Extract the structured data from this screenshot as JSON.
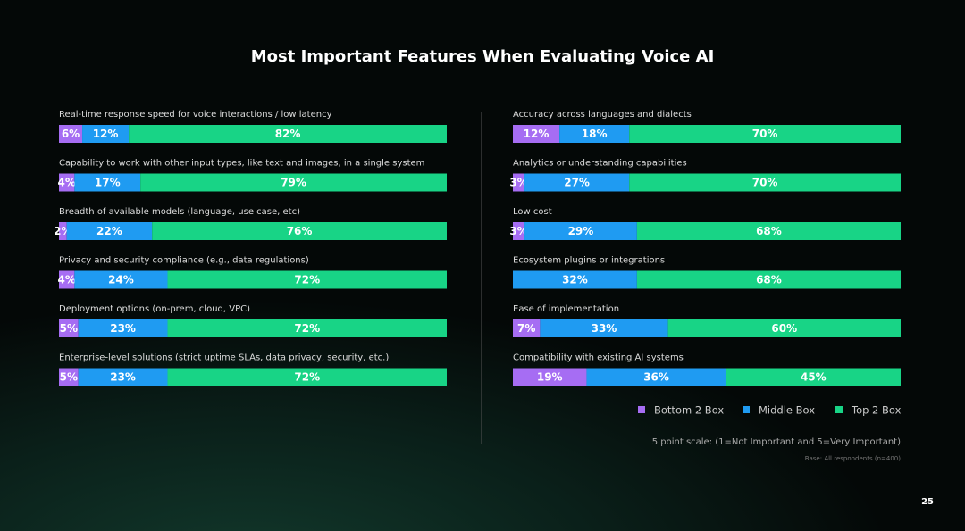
{
  "chart_data": {
    "type": "stacked-barh",
    "title": "Most Important Features When Evaluating Voice AI",
    "categories": [
      "Real-time response speed for voice interactions / low latency",
      "Capability to work with other input types, like text and images, in a single system",
      "Breadth of available models (language, use case, etc)",
      "Privacy and security compliance (e.g., data regulations)",
      "Deployment options (on-prem, cloud, VPC)",
      "Enterprise-level solutions (strict uptime SLAs, data privacy, security, etc.)",
      "Accuracy across languages and dialects",
      "Analytics or understanding capabilities",
      "Low cost",
      "Ecosystem plugins or integrations",
      "Ease of implementation",
      "Compatibility with existing AI systems"
    ],
    "xlim": [
      0,
      100
    ],
    "series": [
      {
        "name": "Bottom 2 Box",
        "color": "#a66df3",
        "values": [
          6,
          4,
          2,
          4,
          5,
          5,
          12,
          3,
          3,
          0,
          7,
          19
        ],
        "value_labels": [
          "6%",
          "4%",
          "2%",
          "4%",
          "5%",
          "5%",
          "12%",
          "3%",
          "3%",
          null,
          "7%",
          "19%"
        ]
      },
      {
        "name": "Middle Box",
        "color": "#1f9bf2",
        "values": [
          12,
          17,
          22,
          24,
          23,
          23,
          18,
          27,
          29,
          32,
          33,
          36
        ],
        "value_labels": [
          "12%",
          "17%",
          "22%",
          "24%",
          "23%",
          "23%",
          "18%",
          "27%",
          "29%",
          "32%",
          "33%",
          "36%"
        ]
      },
      {
        "name": "Top 2 Box",
        "color": "#18d486",
        "values": [
          82,
          79,
          76,
          72,
          72,
          72,
          70,
          70,
          68,
          68,
          60,
          45
        ],
        "value_labels": [
          "82%",
          "79%",
          "76%",
          "72%",
          "72%",
          "72%",
          "70%",
          "70%",
          "68%",
          "68%",
          "60%",
          "45%"
        ]
      }
    ],
    "legend": "lower right",
    "notes": [
      "5 point scale: (1=Not Important and 5=Very Important)",
      "Base: All respondents (n=400)"
    ]
  },
  "page_number": "25"
}
